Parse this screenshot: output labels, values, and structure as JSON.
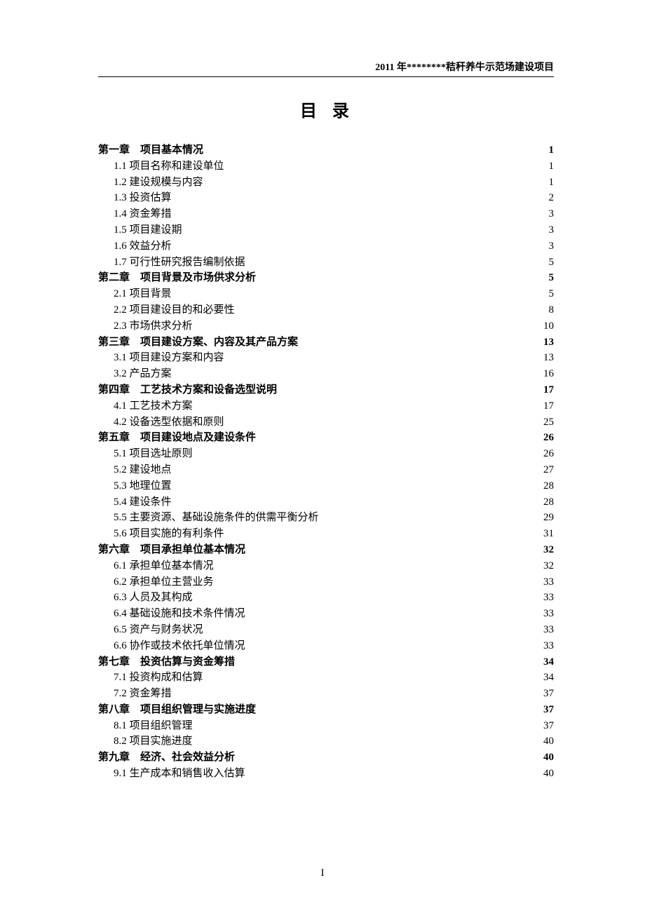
{
  "header": "2011 年********秸秆养牛示范场建设项目",
  "title": "目录",
  "page_number": "I",
  "toc": [
    {
      "type": "chapter",
      "label": "第一章　项目基本情况",
      "page": "1"
    },
    {
      "type": "sub",
      "label": "1.1 项目名称和建设单位",
      "page": "1"
    },
    {
      "type": "sub",
      "label": "1.2 建设规模与内容",
      "page": "1"
    },
    {
      "type": "sub",
      "label": "1.3 投资估算",
      "page": "2"
    },
    {
      "type": "sub",
      "label": "1.4 资金筹措",
      "page": "3"
    },
    {
      "type": "sub",
      "label": "1.5 项目建设期",
      "page": "3"
    },
    {
      "type": "sub",
      "label": "1.6 效益分析",
      "page": "3"
    },
    {
      "type": "sub",
      "label": "1.7 可行性研究报告编制依据",
      "page": "5"
    },
    {
      "type": "chapter",
      "label": "第二章　项目背景及市场供求分析",
      "page": "5"
    },
    {
      "type": "sub",
      "label": "2.1 项目背景",
      "page": "5"
    },
    {
      "type": "sub",
      "label": "2.2 项目建设目的和必要性",
      "page": "8"
    },
    {
      "type": "sub",
      "label": "2.3 市场供求分析",
      "page": "10"
    },
    {
      "type": "chapter",
      "label": "第三章　项目建设方案、内容及其产品方案",
      "page": "13"
    },
    {
      "type": "sub",
      "label": "3.1 项目建设方案和内容",
      "page": "13"
    },
    {
      "type": "sub",
      "label": "3.2 产品方案",
      "page": "16"
    },
    {
      "type": "chapter",
      "label": "第四章　工艺技术方案和设备选型说明",
      "page": "17"
    },
    {
      "type": "sub",
      "label": "4.1 工艺技术方案",
      "page": "17"
    },
    {
      "type": "sub",
      "label": "4.2 设备选型依据和原则",
      "page": "25"
    },
    {
      "type": "chapter",
      "label": "第五章　项目建设地点及建设条件",
      "page": "26"
    },
    {
      "type": "sub",
      "label": "5.1 项目选址原则",
      "page": "26"
    },
    {
      "type": "sub",
      "label": "5.2 建设地点",
      "page": "27"
    },
    {
      "type": "sub",
      "label": "5.3 地理位置",
      "page": "28"
    },
    {
      "type": "sub",
      "label": "5.4 建设条件",
      "page": "28"
    },
    {
      "type": "sub",
      "label": "5.5 主要资源、基础设施条件的供需平衡分析",
      "page": "29"
    },
    {
      "type": "sub",
      "label": "5.6 项目实施的有利条件",
      "page": "31"
    },
    {
      "type": "chapter",
      "label": "第六章　项目承担单位基本情况",
      "page": "32"
    },
    {
      "type": "sub",
      "label": "6.1 承担单位基本情况",
      "page": "32"
    },
    {
      "type": "sub",
      "label": "6.2 承担单位主营业务",
      "page": "33"
    },
    {
      "type": "sub",
      "label": "6.3 人员及其构成",
      "page": "33"
    },
    {
      "type": "sub",
      "label": "6.4 基础设施和技术条件情况",
      "page": "33"
    },
    {
      "type": "sub",
      "label": "6.5 资产与财务状况",
      "page": "33"
    },
    {
      "type": "sub",
      "label": "6.6 协作或技术依托单位情况",
      "page": "33"
    },
    {
      "type": "chapter",
      "label": "第七章　投资估算与资金筹措",
      "page": "34"
    },
    {
      "type": "sub",
      "label": "7.1 投资构成和估算",
      "page": "34"
    },
    {
      "type": "sub",
      "label": "7.2 资金筹措",
      "page": "37"
    },
    {
      "type": "chapter",
      "label": "第八章　项目组织管理与实施进度",
      "page": "37"
    },
    {
      "type": "sub",
      "label": "8.1 项目组织管理",
      "page": "37"
    },
    {
      "type": "sub",
      "label": "8.2 项目实施进度",
      "page": "40"
    },
    {
      "type": "chapter",
      "label": "第九章　经济、社会效益分析",
      "page": "40"
    },
    {
      "type": "sub",
      "label": "9.1 生产成本和销售收入估算",
      "page": "40"
    }
  ]
}
